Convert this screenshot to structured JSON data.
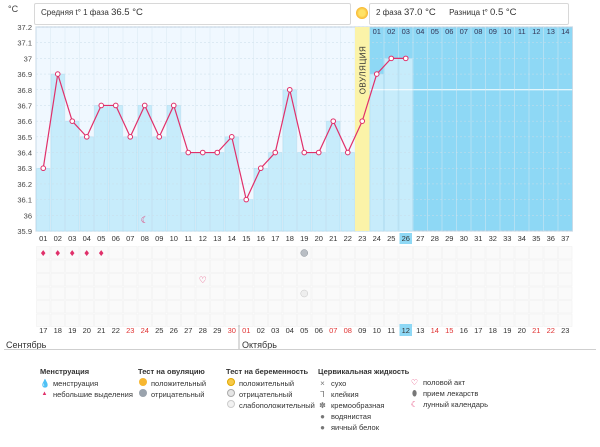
{
  "header": {
    "unit": "°C",
    "phase1_label": "Средняя t° 1 фаза",
    "phase1_value": "36.5 °C",
    "phase2_label": "2 фаза",
    "phase2_value": "37.0 °C",
    "diff_label": "Разница t°",
    "diff_value": "0.5 °C",
    "ovulation_label": "ОВУЛЯЦИЯ"
  },
  "chart_data": {
    "type": "line",
    "title": "",
    "ylabel": "°C",
    "ylim": [
      35.9,
      37.2
    ],
    "yticks": [
      "35.9",
      "36",
      "36.1",
      "36.2",
      "36.3",
      "36.4",
      "36.5",
      "36.6",
      "36.7",
      "36.8",
      "36.9",
      "37",
      "37.1",
      "37.2"
    ],
    "cycle_days": [
      "01",
      "02",
      "03",
      "04",
      "05",
      "06",
      "07",
      "08",
      "09",
      "10",
      "11",
      "12",
      "13",
      "14",
      "15",
      "16",
      "17",
      "18",
      "19",
      "20",
      "21",
      "22",
      "23",
      "24",
      "25",
      "26",
      "27",
      "28",
      "29",
      "30",
      "31",
      "32",
      "33",
      "34",
      "35",
      "36",
      "37"
    ],
    "series": [
      {
        "name": "Базальная температура",
        "values": [
          36.3,
          36.9,
          36.6,
          36.5,
          36.7,
          36.7,
          36.5,
          36.7,
          36.5,
          36.7,
          36.4,
          36.4,
          36.4,
          36.5,
          36.1,
          36.3,
          36.4,
          36.8,
          36.4,
          36.4,
          36.6,
          36.4,
          36.6,
          36.9,
          37.0,
          37.0
        ]
      }
    ],
    "ovulation_day": 23,
    "current_day": 26,
    "phase2_days": [
      "01",
      "02",
      "03",
      "04",
      "05",
      "06",
      "07",
      "08",
      "09",
      "10",
      "11",
      "12",
      "13",
      "14"
    ],
    "calendar_dates": [
      "17",
      "18",
      "19",
      "20",
      "21",
      "22",
      "23",
      "24",
      "25",
      "26",
      "27",
      "28",
      "29",
      "30",
      "01",
      "02",
      "03",
      "04",
      "05",
      "06",
      "07",
      "08",
      "09",
      "10",
      "11",
      "12",
      "13",
      "14",
      "15",
      "16",
      "17",
      "18",
      "19",
      "20",
      "21",
      "22",
      "23"
    ],
    "weekend_dates": [
      6,
      7,
      13,
      14,
      20,
      21,
      27,
      28,
      34,
      35
    ],
    "months": [
      "Сентябрь",
      "Октябрь"
    ]
  },
  "markers": {
    "moon_day": 8,
    "menstruation_days": [
      1,
      2,
      3,
      4,
      5
    ],
    "preg_test_day": 19,
    "heart_day": 12,
    "ov_neg_day": 19,
    "weak_preg_day": 19
  },
  "legend": {
    "menstruation": {
      "title": "Менструация",
      "items": [
        "менструация",
        "небольшие выделения"
      ]
    },
    "ovulation_test": {
      "title": "Тест на овуляцию",
      "items": [
        "положительный",
        "отрицательный"
      ]
    },
    "pregnancy_test": {
      "title": "Тест на беременность",
      "items": [
        "положительный",
        "отрицательный",
        "слабоположительный"
      ]
    },
    "cervical": {
      "title": "Цервикальная жидкость",
      "items": [
        "сухо",
        "клейкия",
        "кремообразная",
        "водянистая",
        "яичный белок"
      ]
    },
    "other": {
      "items": [
        "половой акт",
        "прием лекарств",
        "лунный календарь"
      ]
    }
  },
  "colors": {
    "phase1_bg": "#f0f8ff",
    "phase2_bg": "#8ed8f5",
    "bar_fill": "#c7ecfb",
    "line": "#e0306a",
    "ovulation_band": "#fbf3a8",
    "weekend_text": "#e03333",
    "current_day_bg": "#8ed8f5"
  }
}
